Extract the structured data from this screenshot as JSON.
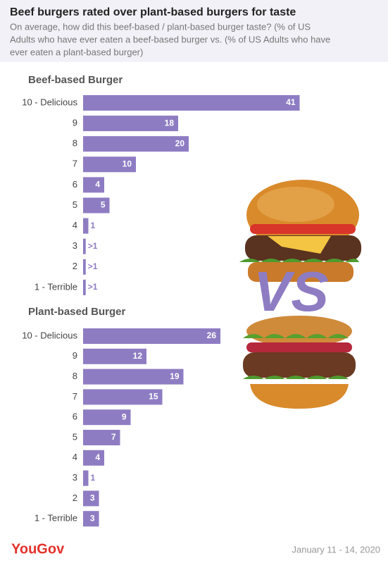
{
  "header": {
    "title": "Beef burgers rated over plant-based burgers for taste",
    "subtitle_lines": [
      "On average, how did this beef-based / plant-based burger taste? (% of US",
      "Adults who have ever eaten a beef-based burger vs. (% of US Adults who have",
      "ever eaten a plant-based burger)"
    ]
  },
  "illustration_text": "VS",
  "footer": {
    "brand": "YouGov",
    "date": "January 11 - 14, 2020"
  },
  "chart_data": [
    {
      "type": "bar",
      "orientation": "horizontal",
      "title": "Beef-based Burger",
      "color": "#8e7cc3",
      "categories": [
        "10 - Delicious",
        "9",
        "8",
        "7",
        "6",
        "5",
        "4",
        "3",
        "2",
        "1 - Terrible"
      ],
      "values": [
        41,
        18,
        20,
        10,
        4,
        5,
        1,
        0.5,
        0.5,
        0.5
      ],
      "value_labels": [
        "41",
        "18",
        "20",
        "10",
        "4",
        "5",
        "1",
        ">1",
        ">1",
        ">1"
      ]
    },
    {
      "type": "bar",
      "orientation": "horizontal",
      "title": "Plant-based Burger",
      "color": "#8e7cc3",
      "categories": [
        "10 - Delicious",
        "9",
        "8",
        "7",
        "6",
        "5",
        "4",
        "3",
        "2",
        "1 - Terrible"
      ],
      "values": [
        26,
        12,
        19,
        15,
        9,
        7,
        4,
        1,
        3,
        3
      ]
    }
  ]
}
